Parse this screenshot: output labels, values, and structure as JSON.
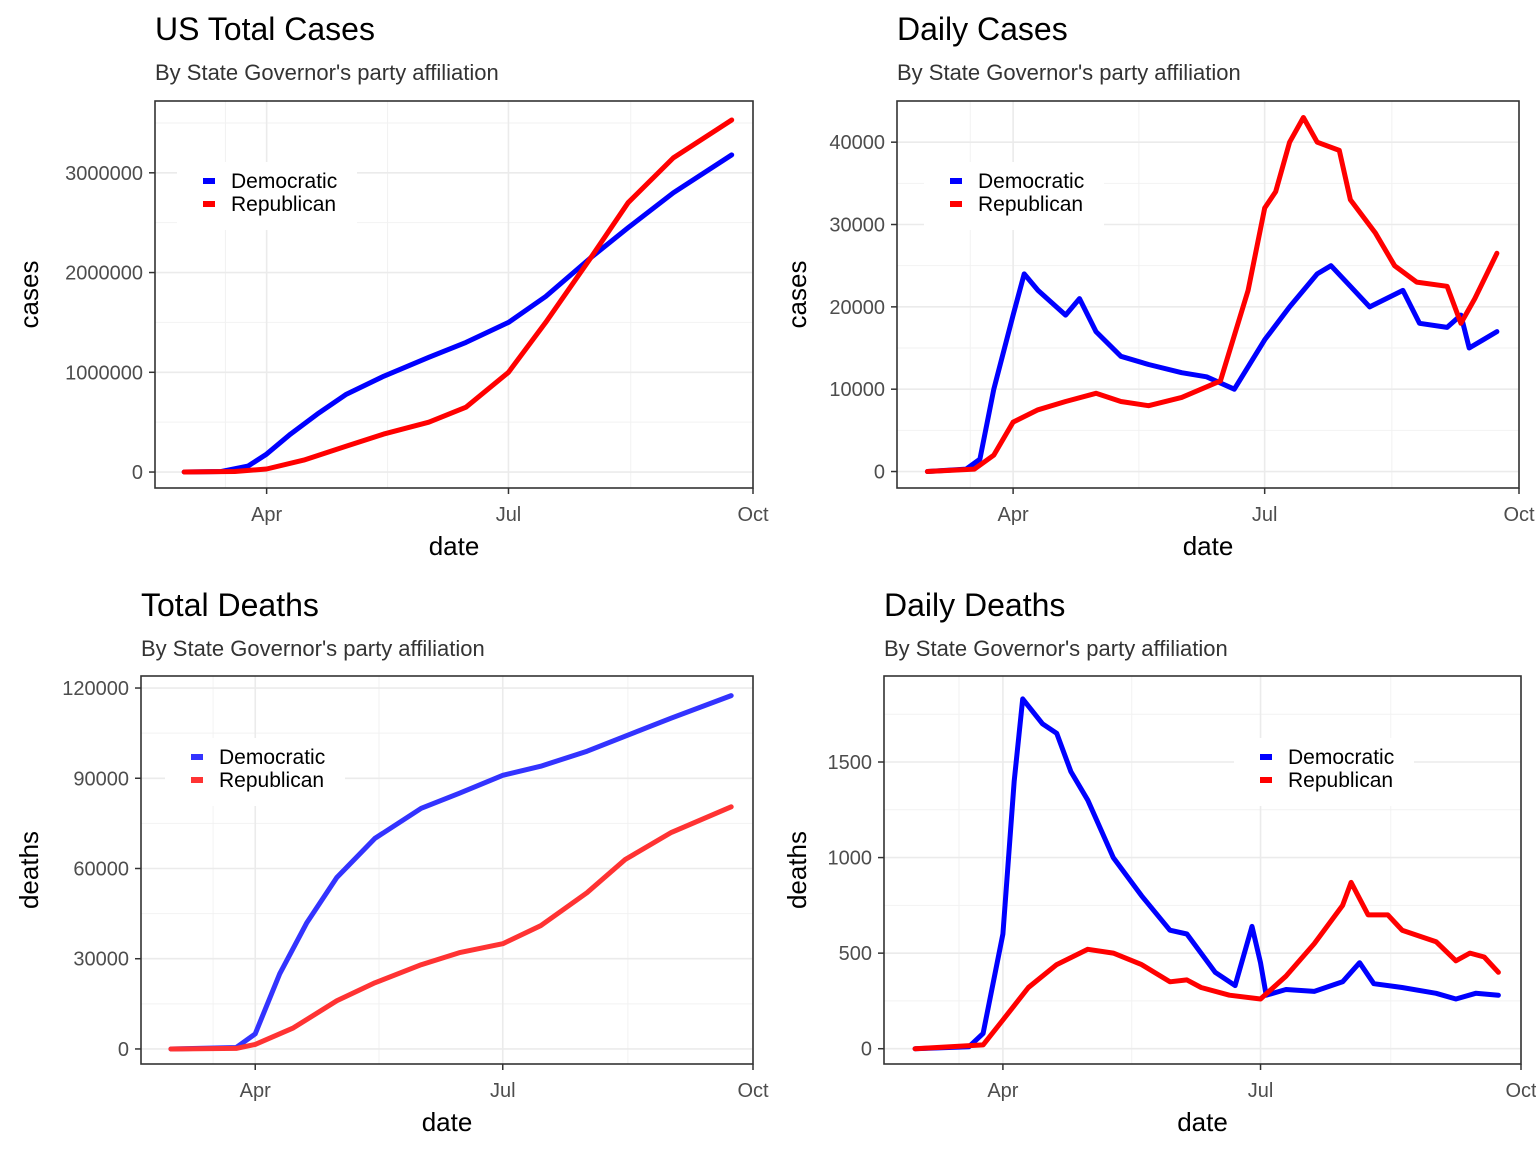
{
  "chart_data": [
    {
      "id": "us-total-cases",
      "type": "line",
      "title": "US Total Cases",
      "subtitle": "By State Governor's party affiliation",
      "xlabel": "date",
      "ylabel": "cases",
      "x_ticks": [
        "Apr",
        "Jul",
        "Oct"
      ],
      "x_tick_dates": [
        "2020-04-01",
        "2020-07-01",
        "2020-10-01"
      ],
      "xlim": [
        "2020-02-19",
        "2020-10-01"
      ],
      "y_ticks": [
        0,
        1000000,
        2000000,
        3000000
      ],
      "ylim": [
        -160000,
        3720000
      ],
      "legend": "top-left inside",
      "series": [
        {
          "name": "Democratic",
          "color": "#0000ff",
          "points": [
            [
              "2020-03-01",
              0
            ],
            [
              "2020-03-15",
              5000
            ],
            [
              "2020-03-25",
              60000
            ],
            [
              "2020-04-01",
              180000
            ],
            [
              "2020-04-10",
              380000
            ],
            [
              "2020-04-20",
              580000
            ],
            [
              "2020-05-01",
              780000
            ],
            [
              "2020-05-15",
              960000
            ],
            [
              "2020-06-01",
              1150000
            ],
            [
              "2020-06-15",
              1300000
            ],
            [
              "2020-07-01",
              1500000
            ],
            [
              "2020-07-15",
              1760000
            ],
            [
              "2020-08-01",
              2150000
            ],
            [
              "2020-08-15",
              2450000
            ],
            [
              "2020-09-01",
              2800000
            ],
            [
              "2020-09-23",
              3180000
            ]
          ]
        },
        {
          "name": "Republican",
          "color": "#ff0000",
          "points": [
            [
              "2020-03-01",
              0
            ],
            [
              "2020-03-20",
              5000
            ],
            [
              "2020-04-01",
              30000
            ],
            [
              "2020-04-15",
              120000
            ],
            [
              "2020-05-01",
              260000
            ],
            [
              "2020-05-15",
              380000
            ],
            [
              "2020-06-01",
              500000
            ],
            [
              "2020-06-15",
              650000
            ],
            [
              "2020-07-01",
              1000000
            ],
            [
              "2020-07-15",
              1500000
            ],
            [
              "2020-08-01",
              2150000
            ],
            [
              "2020-08-15",
              2700000
            ],
            [
              "2020-09-01",
              3150000
            ],
            [
              "2020-09-23",
              3530000
            ]
          ]
        }
      ]
    },
    {
      "id": "daily-cases",
      "type": "line",
      "title": "Daily Cases",
      "subtitle": "By State Governor's party affiliation",
      "xlabel": "date",
      "ylabel": "cases",
      "x_ticks": [
        "Apr",
        "Jul",
        "Oct"
      ],
      "x_tick_dates": [
        "2020-04-01",
        "2020-07-01",
        "2020-10-01"
      ],
      "xlim": [
        "2020-02-19",
        "2020-10-01"
      ],
      "y_ticks": [
        0,
        10000,
        20000,
        30000,
        40000
      ],
      "ylim": [
        -2000,
        45000
      ],
      "legend": "top-left inside",
      "series": [
        {
          "name": "Democratic",
          "color": "#0000ff",
          "points": [
            [
              "2020-03-01",
              0
            ],
            [
              "2020-03-15",
              300
            ],
            [
              "2020-03-20",
              1500
            ],
            [
              "2020-03-25",
              10000
            ],
            [
              "2020-04-01",
              19000
            ],
            [
              "2020-04-05",
              24000
            ],
            [
              "2020-04-10",
              22000
            ],
            [
              "2020-04-15",
              20500
            ],
            [
              "2020-04-20",
              19000
            ],
            [
              "2020-04-25",
              21000
            ],
            [
              "2020-05-01",
              17000
            ],
            [
              "2020-05-10",
              14000
            ],
            [
              "2020-05-20",
              13000
            ],
            [
              "2020-06-01",
              12000
            ],
            [
              "2020-06-10",
              11500
            ],
            [
              "2020-06-20",
              10000
            ],
            [
              "2020-07-01",
              16000
            ],
            [
              "2020-07-10",
              20000
            ],
            [
              "2020-07-20",
              24000
            ],
            [
              "2020-07-25",
              25000
            ],
            [
              "2020-08-01",
              22500
            ],
            [
              "2020-08-08",
              20000
            ],
            [
              "2020-08-20",
              22000
            ],
            [
              "2020-08-26",
              18000
            ],
            [
              "2020-09-05",
              17500
            ],
            [
              "2020-09-10",
              19000
            ],
            [
              "2020-09-13",
              15000
            ],
            [
              "2020-09-18",
              16000
            ],
            [
              "2020-09-23",
              17000
            ]
          ]
        },
        {
          "name": "Republican",
          "color": "#ff0000",
          "points": [
            [
              "2020-03-01",
              0
            ],
            [
              "2020-03-18",
              300
            ],
            [
              "2020-03-25",
              2000
            ],
            [
              "2020-04-01",
              6000
            ],
            [
              "2020-04-10",
              7500
            ],
            [
              "2020-04-20",
              8500
            ],
            [
              "2020-05-01",
              9500
            ],
            [
              "2020-05-10",
              8500
            ],
            [
              "2020-05-20",
              8000
            ],
            [
              "2020-06-01",
              9000
            ],
            [
              "2020-06-15",
              11000
            ],
            [
              "2020-06-25",
              22000
            ],
            [
              "2020-07-01",
              32000
            ],
            [
              "2020-07-05",
              34000
            ],
            [
              "2020-07-10",
              40000
            ],
            [
              "2020-07-15",
              43000
            ],
            [
              "2020-07-20",
              40000
            ],
            [
              "2020-07-28",
              39000
            ],
            [
              "2020-08-01",
              33000
            ],
            [
              "2020-08-10",
              29000
            ],
            [
              "2020-08-17",
              25000
            ],
            [
              "2020-08-25",
              23000
            ],
            [
              "2020-09-05",
              22500
            ],
            [
              "2020-09-10",
              18000
            ],
            [
              "2020-09-15",
              21000
            ],
            [
              "2020-09-23",
              26500
            ]
          ]
        }
      ]
    },
    {
      "id": "total-deaths",
      "type": "line",
      "title": "Total Deaths",
      "subtitle": "By State Governor's party affiliation",
      "xlabel": "date",
      "ylabel": "deaths",
      "x_ticks": [
        "Apr",
        "Jul",
        "Oct"
      ],
      "x_tick_dates": [
        "2020-04-01",
        "2020-07-01",
        "2020-10-01"
      ],
      "xlim": [
        "2020-02-19",
        "2020-10-01"
      ],
      "y_ticks": [
        0,
        30000,
        60000,
        90000,
        120000
      ],
      "ylim": [
        -5000,
        124000
      ],
      "legend": "top-left inside",
      "series": [
        {
          "name": "Democratic",
          "color": "#3333ff",
          "points": [
            [
              "2020-03-01",
              0
            ],
            [
              "2020-03-25",
              500
            ],
            [
              "2020-04-01",
              5000
            ],
            [
              "2020-04-10",
              25000
            ],
            [
              "2020-04-20",
              42000
            ],
            [
              "2020-05-01",
              57000
            ],
            [
              "2020-05-15",
              70000
            ],
            [
              "2020-06-01",
              80000
            ],
            [
              "2020-06-15",
              85000
            ],
            [
              "2020-07-01",
              91000
            ],
            [
              "2020-07-15",
              94000
            ],
            [
              "2020-08-01",
              99000
            ],
            [
              "2020-08-15",
              104000
            ],
            [
              "2020-09-01",
              110000
            ],
            [
              "2020-09-23",
              117500
            ]
          ]
        },
        {
          "name": "Republican",
          "color": "#ff3333",
          "points": [
            [
              "2020-03-01",
              0
            ],
            [
              "2020-03-25",
              200
            ],
            [
              "2020-04-01",
              1500
            ],
            [
              "2020-04-15",
              7000
            ],
            [
              "2020-05-01",
              16000
            ],
            [
              "2020-05-15",
              22000
            ],
            [
              "2020-06-01",
              28000
            ],
            [
              "2020-06-15",
              32000
            ],
            [
              "2020-07-01",
              35000
            ],
            [
              "2020-07-15",
              41000
            ],
            [
              "2020-08-01",
              52000
            ],
            [
              "2020-08-15",
              63000
            ],
            [
              "2020-09-01",
              72000
            ],
            [
              "2020-09-23",
              80500
            ]
          ]
        }
      ]
    },
    {
      "id": "daily-deaths",
      "type": "line",
      "title": "Daily Deaths",
      "subtitle": "By State Governor's party affiliation",
      "xlabel": "date",
      "ylabel": "deaths",
      "x_ticks": [
        "Apr",
        "Jul",
        "Oct"
      ],
      "x_tick_dates": [
        "2020-04-01",
        "2020-07-01",
        "2020-10-01"
      ],
      "xlim": [
        "2020-02-19",
        "2020-10-01"
      ],
      "y_ticks": [
        0,
        500,
        1000,
        1500
      ],
      "ylim": [
        -80,
        1950
      ],
      "legend": "top-right inside",
      "series": [
        {
          "name": "Democratic",
          "color": "#0000ff",
          "points": [
            [
              "2020-03-01",
              0
            ],
            [
              "2020-03-20",
              10
            ],
            [
              "2020-03-25",
              80
            ],
            [
              "2020-04-01",
              600
            ],
            [
              "2020-04-05",
              1400
            ],
            [
              "2020-04-08",
              1830
            ],
            [
              "2020-04-15",
              1700
            ],
            [
              "2020-04-20",
              1650
            ],
            [
              "2020-04-25",
              1450
            ],
            [
              "2020-05-01",
              1300
            ],
            [
              "2020-05-10",
              1000
            ],
            [
              "2020-05-20",
              800
            ],
            [
              "2020-05-30",
              620
            ],
            [
              "2020-06-05",
              600
            ],
            [
              "2020-06-15",
              400
            ],
            [
              "2020-06-22",
              330
            ],
            [
              "2020-06-28",
              640
            ],
            [
              "2020-07-01",
              450
            ],
            [
              "2020-07-03",
              280
            ],
            [
              "2020-07-10",
              310
            ],
            [
              "2020-07-20",
              300
            ],
            [
              "2020-07-30",
              350
            ],
            [
              "2020-08-05",
              450
            ],
            [
              "2020-08-10",
              340
            ],
            [
              "2020-08-20",
              320
            ],
            [
              "2020-09-01",
              290
            ],
            [
              "2020-09-08",
              260
            ],
            [
              "2020-09-15",
              290
            ],
            [
              "2020-09-23",
              280
            ]
          ]
        },
        {
          "name": "Republican",
          "color": "#ff0000",
          "points": [
            [
              "2020-03-01",
              0
            ],
            [
              "2020-03-25",
              20
            ],
            [
              "2020-04-01",
              150
            ],
            [
              "2020-04-10",
              320
            ],
            [
              "2020-04-20",
              440
            ],
            [
              "2020-05-01",
              520
            ],
            [
              "2020-05-10",
              500
            ],
            [
              "2020-05-20",
              440
            ],
            [
              "2020-05-30",
              350
            ],
            [
              "2020-06-05",
              360
            ],
            [
              "2020-06-10",
              320
            ],
            [
              "2020-06-20",
              280
            ],
            [
              "2020-07-01",
              260
            ],
            [
              "2020-07-10",
              380
            ],
            [
              "2020-07-20",
              550
            ],
            [
              "2020-07-30",
              750
            ],
            [
              "2020-08-02",
              870
            ],
            [
              "2020-08-08",
              700
            ],
            [
              "2020-08-15",
              700
            ],
            [
              "2020-08-20",
              620
            ],
            [
              "2020-09-01",
              560
            ],
            [
              "2020-09-08",
              460
            ],
            [
              "2020-09-13",
              500
            ],
            [
              "2020-09-18",
              480
            ],
            [
              "2020-09-23",
              400
            ]
          ]
        }
      ]
    }
  ]
}
